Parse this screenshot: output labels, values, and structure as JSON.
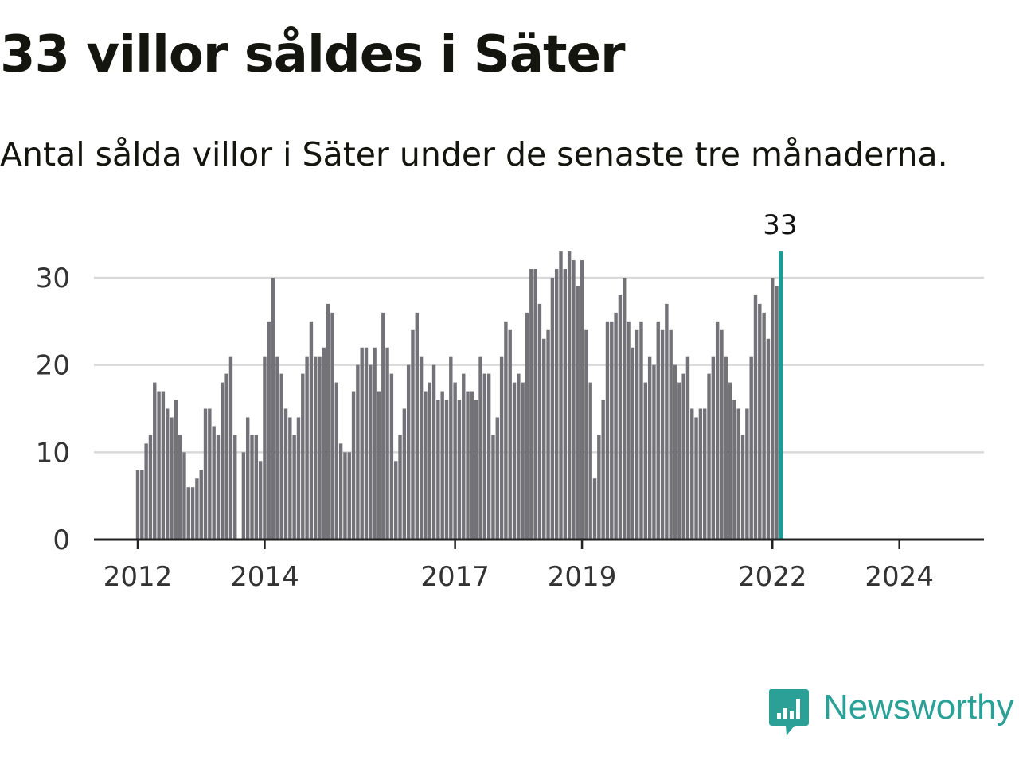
{
  "header": {
    "title": "33 villor såldes i Säter",
    "subtitle": "Antal sålda villor i Säter under de senaste tre månaderna."
  },
  "chart_data": {
    "type": "bar",
    "title": "33 villor såldes i Säter",
    "subtitle": "Antal sålda villor i Säter under de senaste tre månaderna.",
    "xlabel": "",
    "ylabel": "",
    "ylim": [
      0,
      33
    ],
    "y_ticks": [
      0,
      10,
      20,
      30
    ],
    "grid": true,
    "start": {
      "year": 2012,
      "month": 1
    },
    "x_tick_labels": [
      {
        "label": "2012",
        "index": 0
      },
      {
        "label": "2014",
        "index": 30
      },
      {
        "label": "2017",
        "index": 75
      },
      {
        "label": "2019",
        "index": 105
      },
      {
        "label": "2022",
        "index": 150
      },
      {
        "label": "2024",
        "index": 180
      }
    ],
    "values": [
      8,
      8,
      11,
      12,
      18,
      17,
      17,
      15,
      14,
      16,
      12,
      10,
      6,
      6,
      7,
      8,
      15,
      15,
      13,
      12,
      18,
      19,
      21,
      12,
      0,
      10,
      14,
      12,
      12,
      9,
      21,
      25,
      30,
      21,
      19,
      15,
      14,
      12,
      14,
      19,
      21,
      25,
      21,
      21,
      22,
      27,
      26,
      18,
      11,
      10,
      10,
      17,
      20,
      22,
      22,
      20,
      22,
      17,
      26,
      22,
      19,
      9,
      12,
      15,
      20,
      24,
      26,
      21,
      17,
      18,
      20,
      16,
      17,
      16,
      21,
      18,
      16,
      19,
      17,
      17,
      16,
      21,
      19,
      19,
      12,
      14,
      21,
      25,
      24,
      18,
      19,
      18,
      26,
      31,
      31,
      27,
      23,
      24,
      30,
      31,
      33,
      31,
      33,
      32,
      29,
      32,
      24,
      18,
      7,
      12,
      16,
      25,
      25,
      26,
      28,
      30,
      25,
      22,
      24,
      25,
      18,
      21,
      20,
      25,
      24,
      27,
      24,
      20,
      18,
      19,
      21,
      15,
      14,
      15,
      15,
      19,
      21,
      25,
      24,
      21,
      18,
      16,
      15,
      12,
      15,
      21,
      28,
      27,
      26,
      23,
      30,
      29,
      33
    ],
    "highlight": {
      "index": 152,
      "value": 33,
      "label": "33"
    },
    "colors": {
      "bar": "#737278",
      "highlight": "#14a097",
      "grid": "#d9d9d9",
      "axis": "#222222"
    }
  },
  "logo": {
    "text": "Newsworthy",
    "icon": "newsworthy-chat-bar-icon",
    "color": "#2aa096"
  }
}
